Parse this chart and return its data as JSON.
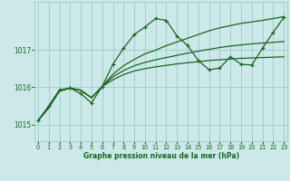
{
  "background_color": "#cce8e8",
  "grid_color": "#99cccc",
  "line_color": "#1a6620",
  "xlabel": "Graphe pression niveau de la mer (hPa)",
  "ylim": [
    1014.55,
    1018.3
  ],
  "xlim": [
    -0.3,
    23.3
  ],
  "yticks": [
    1015,
    1016,
    1017
  ],
  "xticks": [
    0,
    1,
    2,
    3,
    4,
    5,
    6,
    7,
    8,
    9,
    10,
    11,
    12,
    13,
    14,
    15,
    16,
    17,
    18,
    19,
    20,
    21,
    22,
    23
  ],
  "series": [
    {
      "x": [
        0,
        1,
        2,
        3,
        4,
        5,
        6,
        7,
        8,
        9,
        10,
        11,
        12,
        13,
        14,
        15,
        16,
        17,
        18,
        19,
        20,
        21,
        22,
        23
      ],
      "y": [
        1015.1,
        1015.45,
        1015.9,
        1015.98,
        1015.92,
        1015.72,
        1016.02,
        1016.35,
        1016.58,
        1016.75,
        1016.9,
        1017.0,
        1017.12,
        1017.22,
        1017.32,
        1017.42,
        1017.52,
        1017.6,
        1017.66,
        1017.72,
        1017.76,
        1017.8,
        1017.85,
        1017.9
      ],
      "marker": null,
      "lw": 0.9
    },
    {
      "x": [
        0,
        1,
        2,
        3,
        4,
        5,
        6,
        7,
        8,
        9,
        10,
        11,
        12,
        13,
        14,
        15,
        16,
        17,
        18,
        19,
        20,
        21,
        22,
        23
      ],
      "y": [
        1015.1,
        1015.45,
        1015.9,
        1015.98,
        1015.92,
        1015.72,
        1016.02,
        1016.28,
        1016.45,
        1016.58,
        1016.67,
        1016.74,
        1016.8,
        1016.86,
        1016.92,
        1016.97,
        1017.02,
        1017.07,
        1017.11,
        1017.14,
        1017.17,
        1017.19,
        1017.21,
        1017.23
      ],
      "marker": null,
      "lw": 0.9
    },
    {
      "x": [
        0,
        1,
        2,
        3,
        4,
        5,
        6,
        7,
        8,
        9,
        10,
        11,
        12,
        13,
        14,
        15,
        16,
        17,
        18,
        19,
        20,
        21,
        22,
        23
      ],
      "y": [
        1015.1,
        1015.45,
        1015.9,
        1015.98,
        1015.92,
        1015.72,
        1016.02,
        1016.2,
        1016.34,
        1016.44,
        1016.5,
        1016.55,
        1016.59,
        1016.63,
        1016.66,
        1016.69,
        1016.72,
        1016.74,
        1016.76,
        1016.78,
        1016.79,
        1016.8,
        1016.81,
        1016.82
      ],
      "marker": null,
      "lw": 0.9
    },
    {
      "x": [
        0,
        1,
        2,
        3,
        4,
        5,
        6,
        7,
        8,
        9,
        10,
        11,
        12,
        13,
        14,
        15,
        16,
        17,
        18,
        19,
        20,
        21,
        22,
        23
      ],
      "y": [
        1015.1,
        1015.5,
        1015.93,
        1015.98,
        1015.83,
        1015.58,
        1016.02,
        1016.62,
        1017.05,
        1017.42,
        1017.62,
        1017.85,
        1017.8,
        1017.38,
        1017.12,
        1016.72,
        1016.47,
        1016.52,
        1016.82,
        1016.62,
        1016.6,
        1017.05,
        1017.48,
        1017.88
      ],
      "marker": "+",
      "ms": 3.5,
      "lw": 0.9
    }
  ]
}
